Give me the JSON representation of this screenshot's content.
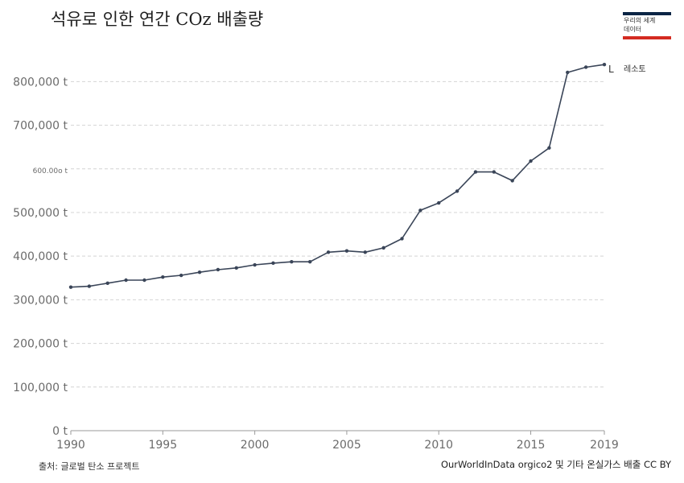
{
  "title": "석유로 인한 연간 COz 배출량",
  "logo": {
    "text": "우리의 세계\n데이터"
  },
  "source_left": "출처: 글로벌 탄소 프로젝트",
  "source_right": "OurWorldInData orgico2 및 기타 온실가스 배출 CC BY",
  "colors": {
    "line": "#3a4558",
    "grid": "#d4d4d4",
    "axis_text": "#6b6b6b",
    "logo_navy": "#0b2545",
    "logo_red": "#d42b21"
  },
  "chart_data": {
    "type": "line",
    "title": "석유로 인한 연간 COz 배출량",
    "xlabel": "",
    "ylabel": "",
    "xlim": [
      1990,
      2019
    ],
    "ylim": [
      0,
      880000
    ],
    "grid": true,
    "x_ticks": [
      1990,
      1995,
      2000,
      2005,
      2010,
      2015,
      2019
    ],
    "y_ticks": [
      {
        "value": 0,
        "label": "0 t"
      },
      {
        "value": 100000,
        "label": "100,000 t"
      },
      {
        "value": 200000,
        "label": "200,000 t"
      },
      {
        "value": 300000,
        "label": "300,000 t"
      },
      {
        "value": 400000,
        "label": "400,000 t"
      },
      {
        "value": 500000,
        "label": "500,000 t"
      },
      {
        "value": 600000,
        "label": "600.00o t"
      },
      {
        "value": 700000,
        "label": "700,000 t"
      },
      {
        "value": 800000,
        "label": "800,000 t"
      }
    ],
    "series": [
      {
        "name": "레소토",
        "color": "#3a4558",
        "x": [
          1990,
          1991,
          1992,
          1993,
          1994,
          1995,
          1996,
          1997,
          1998,
          1999,
          2000,
          2001,
          2002,
          2003,
          2004,
          2005,
          2006,
          2007,
          2008,
          2009,
          2010,
          2011,
          2012,
          2013,
          2014,
          2015,
          2016,
          2017,
          2018,
          2019
        ],
        "y": [
          329000,
          331000,
          338000,
          345000,
          345000,
          352000,
          356000,
          363000,
          369000,
          373000,
          380000,
          384000,
          387000,
          387000,
          409000,
          412000,
          409000,
          419000,
          440000,
          505000,
          522000,
          549000,
          593000,
          593000,
          573000,
          618000,
          648000,
          821000,
          833000,
          839000
        ]
      }
    ],
    "series_label_prefix": "L"
  }
}
